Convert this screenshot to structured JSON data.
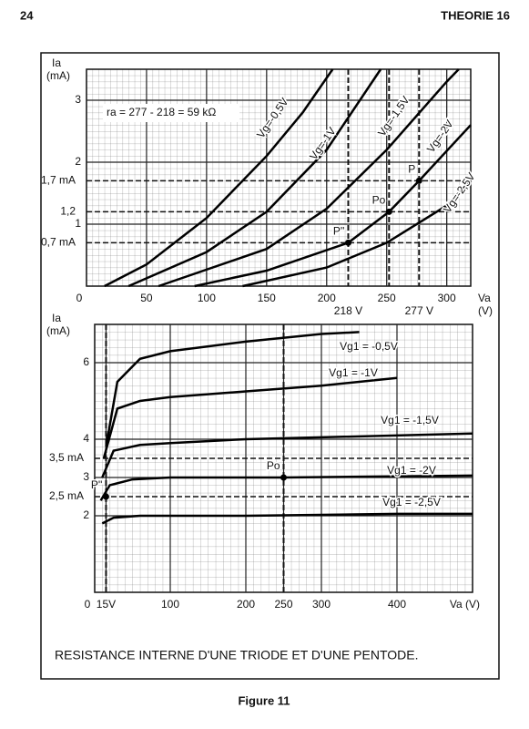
{
  "header": {
    "page": "24",
    "section": "THEORIE 16"
  },
  "chart_data": [
    {
      "type": "line",
      "ylabel": "Ia",
      "yunit": "(mA)",
      "xlabel": "Va",
      "xunit": "(V)",
      "xlim": [
        0,
        320
      ],
      "ylim": [
        0,
        3.5
      ],
      "xticks": [
        0,
        50,
        100,
        150,
        200,
        250,
        300
      ],
      "yticks": [
        1,
        2,
        3
      ],
      "annotation": "ra = 277 - 218 = 59 kΩ",
      "series": [
        {
          "name": "Vg=-0,5V",
          "x": [
            15,
            50,
            100,
            150,
            180,
            205
          ],
          "values": [
            0,
            0.35,
            1.1,
            2.1,
            2.8,
            3.5
          ]
        },
        {
          "name": "Vg=-1V",
          "x": [
            35,
            100,
            150,
            200,
            245
          ],
          "values": [
            0,
            0.55,
            1.2,
            2.2,
            3.5
          ]
        },
        {
          "name": "Vg=-1,5V",
          "x": [
            60,
            150,
            200,
            250,
            300,
            310
          ],
          "values": [
            0,
            0.6,
            1.25,
            2.2,
            3.3,
            3.5
          ]
        },
        {
          "name": "Vg=-2V",
          "x": [
            90,
            150,
            218,
            252,
            277,
            320
          ],
          "values": [
            0,
            0.25,
            0.7,
            1.2,
            1.7,
            2.6
          ]
        },
        {
          "name": "Vg=-2,5V",
          "x": [
            130,
            200,
            250,
            300,
            320
          ],
          "values": [
            0,
            0.3,
            0.7,
            1.3,
            1.7
          ]
        }
      ],
      "hlines": [
        {
          "value": 1.7,
          "label": "1,7 mA"
        },
        {
          "value": 1.2,
          "label": "1,2"
        },
        {
          "value": 0.7,
          "label": "0,7 mA"
        }
      ],
      "vlines": [
        {
          "value": 218,
          "label": "218 V"
        },
        {
          "value": 277,
          "label": "277 V"
        },
        {
          "value": 252
        }
      ],
      "points": [
        {
          "label": "Po",
          "x": 252,
          "y": 1.2
        },
        {
          "label": "P",
          "x": 277,
          "y": 1.7
        },
        {
          "label": "P''",
          "x": 218,
          "y": 0.7
        }
      ]
    },
    {
      "type": "line",
      "ylabel": "Ia",
      "yunit": "(mA)",
      "xlabel": "Va (V)",
      "xlim": [
        0,
        500
      ],
      "ylim": [
        0,
        7
      ],
      "xticks": [
        0,
        {
          "value": 15,
          "label": "15V"
        },
        100,
        200,
        250,
        300,
        400
      ],
      "yticks": [
        2,
        3,
        4,
        6
      ],
      "series": [
        {
          "name": "Vg1 = -0,5V",
          "x": [
            15,
            30,
            60,
            100,
            200,
            300,
            350
          ],
          "values": [
            3.8,
            5.5,
            6.1,
            6.3,
            6.55,
            6.75,
            6.8
          ]
        },
        {
          "name": "Vg1 = -1V",
          "x": [
            12,
            30,
            60,
            100,
            200,
            300,
            400
          ],
          "values": [
            3.5,
            4.8,
            5.0,
            5.1,
            5.25,
            5.4,
            5.6
          ]
        },
        {
          "name": "Vg1 = -1,5V",
          "x": [
            10,
            25,
            60,
            100,
            200,
            300,
            500
          ],
          "values": [
            3.0,
            3.7,
            3.85,
            3.9,
            4.0,
            4.05,
            4.15
          ]
        },
        {
          "name": "Vg1 = -2V",
          "x": [
            8,
            20,
            50,
            100,
            250,
            500
          ],
          "values": [
            2.4,
            2.8,
            2.95,
            3.0,
            3.0,
            3.05
          ]
        },
        {
          "name": "Vg1 = -2,5V",
          "x": [
            10,
            25,
            60,
            200,
            400,
            500
          ],
          "values": [
            1.8,
            1.95,
            2.0,
            2.0,
            2.05,
            2.05
          ]
        }
      ],
      "hlines": [
        {
          "value": 3.5,
          "label": "3,5 mA"
        },
        {
          "value": 2.5,
          "label": "2,5 mA"
        }
      ],
      "vlines": [
        {
          "value": 15
        },
        {
          "value": 250
        }
      ],
      "points": [
        {
          "label": "Po",
          "x": 250,
          "y": 3
        },
        {
          "label": "P''",
          "x": 15,
          "y": 2.5
        }
      ]
    }
  ],
  "caption": "RESISTANCE INTERNE D'UNE TRIODE ET D'UNE PENTODE.",
  "figure": "Figure 11"
}
